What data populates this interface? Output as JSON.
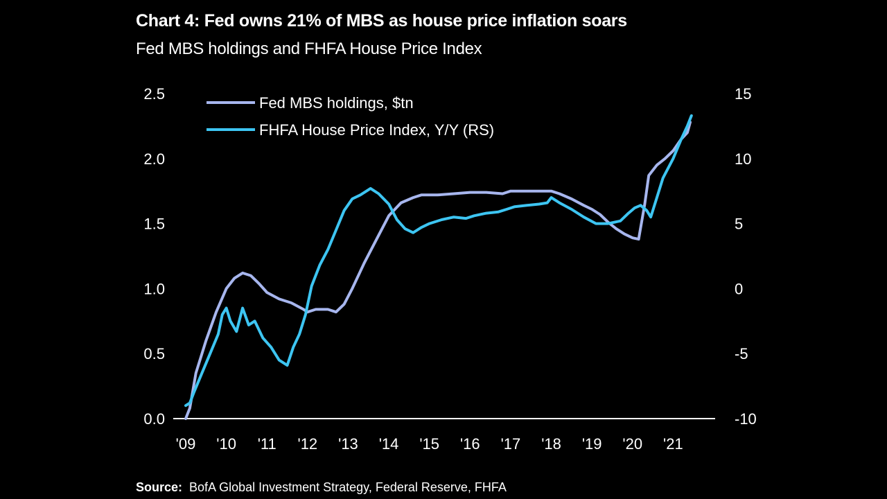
{
  "chart_data": {
    "type": "line",
    "title": "Chart 4: Fed owns 21% of MBS  as house price inflation soars",
    "subtitle": "Fed MBS holdings and FHFA House Price Index",
    "source_label": "Source:",
    "source_text": "BofA Global Investment Strategy, Federal Reserve, FHFA",
    "x_ticks": [
      "'09",
      "'10",
      "'11",
      "'12",
      "'13",
      "'14",
      "'15",
      "'16",
      "'17",
      "'18",
      "'19",
      "'20",
      "'21"
    ],
    "xlim": [
      2009.0,
      2022.0
    ],
    "y_left": {
      "ticks": [
        "0.0",
        "0.5",
        "1.0",
        "1.5",
        "2.0",
        "2.5"
      ],
      "ylim": [
        0,
        2.5
      ]
    },
    "y_right": {
      "ticks": [
        "-10",
        "-5",
        "0",
        "5",
        "10",
        "15"
      ],
      "ylim": [
        -10,
        15
      ]
    },
    "grid": false,
    "legend_position": "top-left",
    "series": [
      {
        "name": "Fed MBS holdings, $tn",
        "axis": "left",
        "color": "#a7b6ee",
        "points": [
          [
            2009.0,
            0.0
          ],
          [
            2009.1,
            0.08
          ],
          [
            2009.25,
            0.35
          ],
          [
            2009.5,
            0.6
          ],
          [
            2009.75,
            0.82
          ],
          [
            2010.0,
            1.0
          ],
          [
            2010.2,
            1.08
          ],
          [
            2010.4,
            1.12
          ],
          [
            2010.6,
            1.1
          ],
          [
            2010.8,
            1.04
          ],
          [
            2011.0,
            0.97
          ],
          [
            2011.3,
            0.92
          ],
          [
            2011.6,
            0.89
          ],
          [
            2011.9,
            0.84
          ],
          [
            2012.0,
            0.82
          ],
          [
            2012.2,
            0.84
          ],
          [
            2012.5,
            0.84
          ],
          [
            2012.7,
            0.82
          ],
          [
            2012.9,
            0.88
          ],
          [
            2013.1,
            1.0
          ],
          [
            2013.4,
            1.2
          ],
          [
            2013.7,
            1.38
          ],
          [
            2014.0,
            1.56
          ],
          [
            2014.3,
            1.66
          ],
          [
            2014.6,
            1.7
          ],
          [
            2014.8,
            1.72
          ],
          [
            2015.2,
            1.72
          ],
          [
            2015.6,
            1.73
          ],
          [
            2016.0,
            1.74
          ],
          [
            2016.4,
            1.74
          ],
          [
            2016.8,
            1.73
          ],
          [
            2017.0,
            1.75
          ],
          [
            2017.4,
            1.75
          ],
          [
            2017.8,
            1.75
          ],
          [
            2018.0,
            1.75
          ],
          [
            2018.2,
            1.73
          ],
          [
            2018.5,
            1.69
          ],
          [
            2018.8,
            1.64
          ],
          [
            2019.0,
            1.61
          ],
          [
            2019.2,
            1.57
          ],
          [
            2019.4,
            1.51
          ],
          [
            2019.6,
            1.46
          ],
          [
            2019.8,
            1.42
          ],
          [
            2020.0,
            1.39
          ],
          [
            2020.15,
            1.38
          ],
          [
            2020.3,
            1.65
          ],
          [
            2020.4,
            1.87
          ],
          [
            2020.6,
            1.95
          ],
          [
            2020.8,
            2.0
          ],
          [
            2021.0,
            2.06
          ],
          [
            2021.2,
            2.15
          ],
          [
            2021.35,
            2.2
          ],
          [
            2021.42,
            2.28
          ]
        ]
      },
      {
        "name": "FHFA House Price Index, Y/Y (RS)",
        "axis": "right",
        "color": "#3dc5f2",
        "points": [
          [
            2009.0,
            -9.0
          ],
          [
            2009.1,
            -8.8
          ],
          [
            2009.2,
            -8.0
          ],
          [
            2009.4,
            -6.5
          ],
          [
            2009.6,
            -5.0
          ],
          [
            2009.8,
            -3.5
          ],
          [
            2009.9,
            -2.0
          ],
          [
            2010.0,
            -1.5
          ],
          [
            2010.1,
            -2.5
          ],
          [
            2010.25,
            -3.3
          ],
          [
            2010.4,
            -1.5
          ],
          [
            2010.55,
            -2.8
          ],
          [
            2010.7,
            -2.5
          ],
          [
            2010.9,
            -3.8
          ],
          [
            2011.1,
            -4.5
          ],
          [
            2011.3,
            -5.5
          ],
          [
            2011.5,
            -5.9
          ],
          [
            2011.65,
            -4.5
          ],
          [
            2011.8,
            -3.5
          ],
          [
            2011.95,
            -2.0
          ],
          [
            2012.1,
            0.2
          ],
          [
            2012.3,
            1.8
          ],
          [
            2012.5,
            3.0
          ],
          [
            2012.7,
            4.5
          ],
          [
            2012.9,
            6.0
          ],
          [
            2013.1,
            6.9
          ],
          [
            2013.3,
            7.2
          ],
          [
            2013.55,
            7.7
          ],
          [
            2013.75,
            7.3
          ],
          [
            2014.0,
            6.5
          ],
          [
            2014.2,
            5.3
          ],
          [
            2014.4,
            4.6
          ],
          [
            2014.6,
            4.3
          ],
          [
            2014.8,
            4.7
          ],
          [
            2015.0,
            5.0
          ],
          [
            2015.3,
            5.3
          ],
          [
            2015.6,
            5.5
          ],
          [
            2015.9,
            5.4
          ],
          [
            2016.1,
            5.6
          ],
          [
            2016.4,
            5.8
          ],
          [
            2016.7,
            5.9
          ],
          [
            2016.9,
            6.1
          ],
          [
            2017.1,
            6.3
          ],
          [
            2017.4,
            6.4
          ],
          [
            2017.7,
            6.5
          ],
          [
            2017.9,
            6.6
          ],
          [
            2018.0,
            7.0
          ],
          [
            2018.2,
            6.6
          ],
          [
            2018.5,
            6.1
          ],
          [
            2018.8,
            5.5
          ],
          [
            2019.1,
            5.0
          ],
          [
            2019.4,
            5.0
          ],
          [
            2019.7,
            5.2
          ],
          [
            2019.9,
            5.8
          ],
          [
            2020.05,
            6.2
          ],
          [
            2020.2,
            6.4
          ],
          [
            2020.35,
            6.0
          ],
          [
            2020.45,
            5.5
          ],
          [
            2020.6,
            7.0
          ],
          [
            2020.75,
            8.5
          ],
          [
            2021.0,
            10.0
          ],
          [
            2021.2,
            11.5
          ],
          [
            2021.35,
            12.5
          ],
          [
            2021.45,
            13.3
          ]
        ]
      }
    ]
  }
}
